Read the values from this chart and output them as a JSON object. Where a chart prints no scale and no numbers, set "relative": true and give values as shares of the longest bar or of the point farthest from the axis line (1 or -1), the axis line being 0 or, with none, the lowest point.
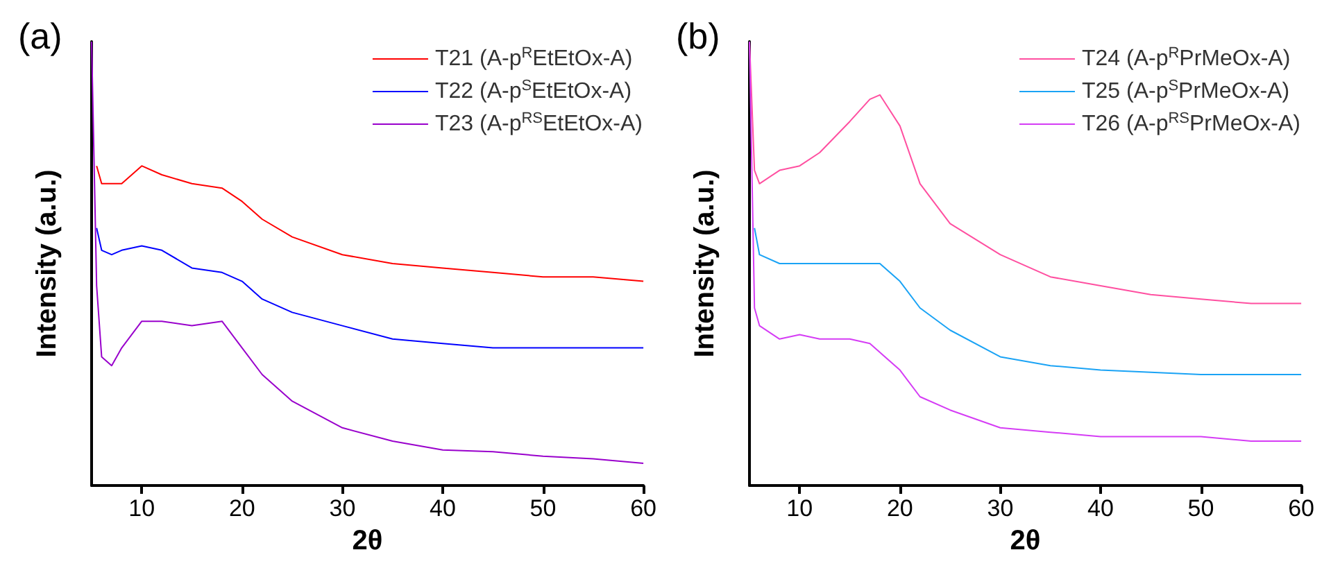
{
  "chart_data": [
    {
      "type": "line",
      "title": "(a)",
      "xlabel": "2θ",
      "ylabel": "Intensity (a.u.)",
      "relative": true,
      "legend": "top right",
      "xlim": [
        5,
        60
      ],
      "xticks": [
        10,
        20,
        30,
        40,
        50,
        60
      ],
      "x": [
        5,
        5.5,
        6,
        7,
        8,
        10,
        12,
        15,
        18,
        20,
        22,
        25,
        30,
        35,
        40,
        45,
        50,
        55,
        60
      ],
      "series": [
        {
          "name": "T21 (A-p$^{R}$EtEtOx-A)",
          "color": "#ff0000",
          "values": [
            null,
            0.72,
            0.68,
            0.68,
            0.68,
            0.72,
            0.7,
            0.68,
            0.67,
            0.64,
            0.6,
            0.56,
            0.52,
            0.5,
            0.49,
            0.48,
            0.47,
            0.47,
            0.46
          ]
        },
        {
          "name": "T22 (A-p$^{S}$EtEtOx-A)",
          "color": "#0000ff",
          "values": [
            null,
            0.58,
            0.53,
            0.52,
            0.53,
            0.54,
            0.53,
            0.49,
            0.48,
            0.46,
            0.42,
            0.39,
            0.36,
            0.33,
            0.32,
            0.31,
            0.31,
            0.31,
            0.31
          ]
        },
        {
          "name": "T23 (A-p$^{RS}$EtEtOx-A)",
          "color": "#9900cc",
          "values": [
            1,
            0.45,
            0.29,
            0.27,
            0.31,
            0.37,
            0.37,
            0.36,
            0.37,
            0.31,
            0.25,
            0.19,
            0.13,
            0.1,
            0.08,
            0.076,
            0.066,
            0.06,
            0.05
          ]
        }
      ]
    },
    {
      "type": "line",
      "title": "(b)",
      "xlabel": "2θ",
      "ylabel": "Intensity (a.u.)",
      "relative": true,
      "legend": "top right",
      "xlim": [
        5,
        60
      ],
      "xticks": [
        10,
        20,
        30,
        40,
        50,
        60
      ],
      "x": [
        5,
        5.5,
        6,
        8,
        10,
        12,
        15,
        17,
        18,
        20,
        22,
        25,
        30,
        35,
        40,
        45,
        50,
        55,
        60
      ],
      "series": [
        {
          "name": "T24 (A-p$^{R}$PrMeOx-A)",
          "color": "#ff4fa0",
          "values": [
            1,
            0.71,
            0.68,
            0.71,
            0.72,
            0.75,
            0.82,
            0.87,
            0.88,
            0.81,
            0.68,
            0.59,
            0.52,
            0.47,
            0.45,
            0.43,
            0.42,
            0.41,
            0.41
          ]
        },
        {
          "name": "T25 (A-p$^{S}$PrMeOx-A)",
          "color": "#1aa3f5",
          "values": [
            null,
            0.58,
            0.52,
            0.5,
            0.5,
            0.5,
            0.5,
            0.5,
            0.5,
            0.46,
            0.4,
            0.35,
            0.29,
            0.27,
            0.26,
            0.255,
            0.25,
            0.25,
            0.25
          ]
        },
        {
          "name": "T26 (A-p$^{RS}$PrMeOx-A)",
          "color": "#d53cf5",
          "values": [
            1,
            0.4,
            0.36,
            0.33,
            0.34,
            0.33,
            0.33,
            0.32,
            0.3,
            0.26,
            0.2,
            0.17,
            0.13,
            0.12,
            0.11,
            0.11,
            0.11,
            0.1,
            0.1
          ]
        }
      ]
    }
  ]
}
